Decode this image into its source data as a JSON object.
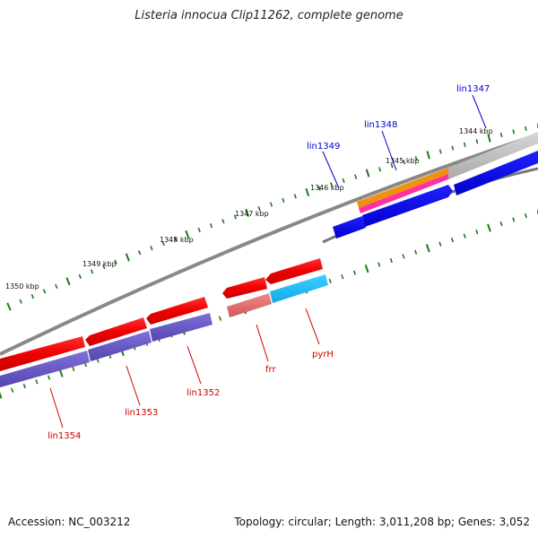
{
  "title": "Listeria innocua Clip11262, complete genome",
  "footer": {
    "accession": "Accession: NC_003212",
    "topology": "Topology: circular; Length: 3,011,208 bp; Genes: 3,052"
  },
  "kbp_labels": [
    "1344 kbp",
    "1345 kbp",
    "1346 kbp",
    "1347 kbp",
    "1348 kbp",
    "1349 kbp",
    "1350 kbp"
  ],
  "genes_top": [
    "lin1347",
    "lin1348",
    "lin1349"
  ],
  "genes_bottom": [
    "pyrH",
    "frr",
    "lin1352",
    "lin1353",
    "lin1354"
  ],
  "colors": {
    "forward_label": "#0000cc",
    "reverse_label": "#cc0000",
    "tick": "#1a7a1a",
    "backbone": "#808080"
  }
}
